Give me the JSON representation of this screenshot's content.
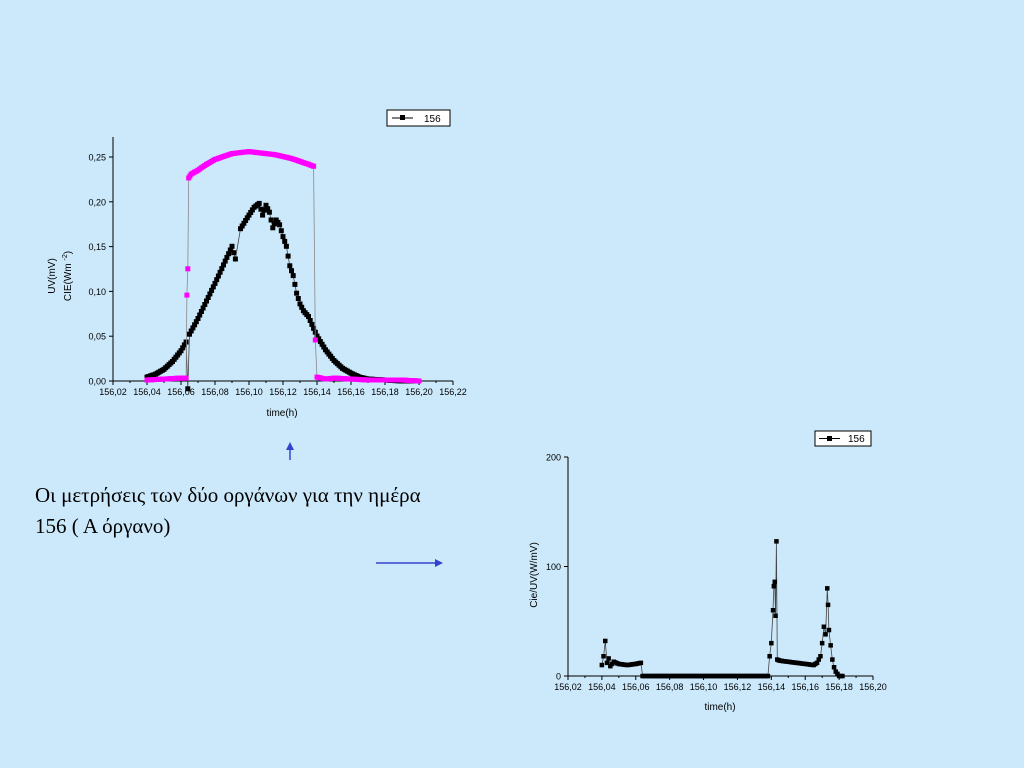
{
  "caption": "Οι μετρήσεις των δύο οργάνων για την ημέρα 156 ( Α όργανο)",
  "colors": {
    "background": "#cce9fb",
    "series_black": "#000000",
    "series_magenta": "#ff00ff",
    "arrow": "#3344cc"
  },
  "chart_data": [
    {
      "type": "scatter",
      "xlabel": "time(h)",
      "ylabel": [
        "UV(mV)",
        "CIE(Wm-2)"
      ],
      "xlim": [
        156.02,
        156.22
      ],
      "ylim": [
        0.0,
        0.25
      ],
      "x_ticks": [
        "156,02",
        "156,04",
        "156,06",
        "156,08",
        "156,10",
        "156,12",
        "156,14",
        "156,16",
        "156,18",
        "156,20",
        "156,22"
      ],
      "y_ticks": [
        "0,00",
        "0,05",
        "0,10",
        "0,15",
        "0,20",
        "0,25"
      ],
      "legend": {
        "position": "top-right",
        "entries": [
          "156"
        ]
      },
      "series": [
        {
          "name": "156",
          "color": "#000000",
          "points": [
            [
              156.04,
              0.004
            ],
            [
              156.045,
              0.007
            ],
            [
              156.05,
              0.012
            ],
            [
              156.055,
              0.02
            ],
            [
              156.06,
              0.031
            ],
            [
              156.063,
              0.04
            ],
            [
              156.064,
              -0.008
            ],
            [
              156.065,
              0.048
            ],
            [
              156.07,
              0.064
            ],
            [
              156.075,
              0.082
            ],
            [
              156.08,
              0.1
            ],
            [
              156.085,
              0.119
            ],
            [
              156.09,
              0.138
            ],
            [
              156.092,
              0.125
            ],
            [
              156.095,
              0.156
            ],
            [
              156.1,
              0.17
            ],
            [
              156.103,
              0.178
            ],
            [
              156.106,
              0.182
            ],
            [
              156.108,
              0.17
            ],
            [
              156.11,
              0.18
            ],
            [
              156.112,
              0.173
            ],
            [
              156.114,
              0.157
            ],
            [
              156.116,
              0.165
            ],
            [
              156.118,
              0.16
            ],
            [
              156.12,
              0.148
            ],
            [
              156.122,
              0.138
            ],
            [
              156.124,
              0.118
            ],
            [
              156.126,
              0.108
            ],
            [
              156.128,
              0.09
            ],
            [
              156.13,
              0.079
            ],
            [
              156.132,
              0.072
            ],
            [
              156.135,
              0.066
            ],
            [
              156.138,
              0.054
            ],
            [
              156.14,
              0.046
            ],
            [
              156.145,
              0.032
            ],
            [
              156.15,
              0.021
            ],
            [
              156.155,
              0.013
            ],
            [
              156.16,
              0.008
            ],
            [
              156.165,
              0.004
            ],
            [
              156.17,
              0.002
            ],
            [
              156.18,
              0.001
            ],
            [
              156.19,
              0.0
            ],
            [
              156.2,
              0.0
            ]
          ]
        },
        {
          "name": "",
          "color": "#ff00ff",
          "points": [
            [
              156.04,
              0.001
            ],
            [
              156.05,
              0.002
            ],
            [
              156.06,
              0.003
            ],
            [
              156.063,
              0.003
            ],
            [
              156.0635,
              0.088
            ],
            [
              156.064,
              0.115
            ],
            [
              156.0645,
              0.208
            ],
            [
              156.066,
              0.212
            ],
            [
              156.07,
              0.216
            ],
            [
              156.075,
              0.222
            ],
            [
              156.08,
              0.227
            ],
            [
              156.085,
              0.23
            ],
            [
              156.09,
              0.233
            ],
            [
              156.095,
              0.234
            ],
            [
              156.1,
              0.235
            ],
            [
              156.105,
              0.234
            ],
            [
              156.11,
              0.233
            ],
            [
              156.115,
              0.232
            ],
            [
              156.12,
              0.23
            ],
            [
              156.125,
              0.228
            ],
            [
              156.13,
              0.225
            ],
            [
              156.135,
              0.222
            ],
            [
              156.138,
              0.22
            ],
            [
              156.139,
              0.042
            ],
            [
              156.14,
              0.004
            ],
            [
              156.145,
              0.002
            ],
            [
              156.15,
              0.003
            ],
            [
              156.16,
              0.002
            ],
            [
              156.17,
              0.001
            ],
            [
              156.18,
              0.001
            ],
            [
              156.19,
              0.001
            ],
            [
              156.2,
              0.0
            ]
          ]
        }
      ]
    },
    {
      "type": "scatter",
      "xlabel": "time(h)",
      "ylabel": "Cie/UV(W/mV)",
      "xlim": [
        156.02,
        156.2
      ],
      "ylim": [
        0,
        200
      ],
      "x_ticks": [
        "156,02",
        "156,04",
        "156,06",
        "156,08",
        "156,10",
        "156,12",
        "156,14",
        "156,16",
        "156,18",
        "156,20"
      ],
      "y_ticks": [
        "0",
        "100",
        "200"
      ],
      "legend": {
        "position": "top-right",
        "entries": [
          "156"
        ]
      },
      "series": [
        {
          "name": "156",
          "color": "#000000",
          "points": [
            [
              156.04,
              10
            ],
            [
              156.041,
              18
            ],
            [
              156.042,
              32
            ],
            [
              156.043,
              12
            ],
            [
              156.044,
              16
            ],
            [
              156.045,
              9
            ],
            [
              156.047,
              13
            ],
            [
              156.05,
              11
            ],
            [
              156.055,
              10
            ],
            [
              156.06,
              11
            ],
            [
              156.063,
              12
            ],
            [
              156.064,
              0
            ],
            [
              156.07,
              0
            ],
            [
              156.08,
              0
            ],
            [
              156.09,
              0
            ],
            [
              156.1,
              0
            ],
            [
              156.11,
              0
            ],
            [
              156.12,
              0
            ],
            [
              156.13,
              0
            ],
            [
              156.137,
              0
            ],
            [
              156.138,
              0
            ],
            [
              156.139,
              18
            ],
            [
              156.14,
              30
            ],
            [
              156.141,
              60
            ],
            [
              156.1415,
              82
            ],
            [
              156.142,
              86
            ],
            [
              156.1425,
              55
            ],
            [
              156.143,
              123
            ],
            [
              156.1435,
              15
            ],
            [
              156.145,
              14
            ],
            [
              156.15,
              13
            ],
            [
              156.155,
              12
            ],
            [
              156.16,
              11
            ],
            [
              156.165,
              10
            ],
            [
              156.167,
              12
            ],
            [
              156.169,
              18
            ],
            [
              156.17,
              30
            ],
            [
              156.171,
              45
            ],
            [
              156.172,
              38
            ],
            [
              156.173,
              80
            ],
            [
              156.1735,
              65
            ],
            [
              156.174,
              42
            ],
            [
              156.175,
              28
            ],
            [
              156.176,
              15
            ],
            [
              156.177,
              8
            ],
            [
              156.178,
              4
            ],
            [
              156.179,
              2
            ],
            [
              156.18,
              0
            ],
            [
              156.182,
              0
            ]
          ]
        }
      ]
    }
  ]
}
